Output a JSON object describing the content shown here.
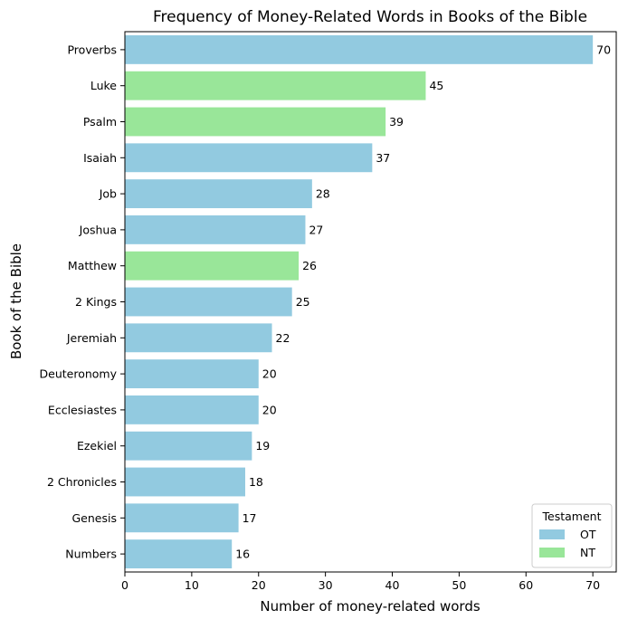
{
  "chart_data": {
    "type": "bar",
    "orientation": "horizontal",
    "title": "Frequency of Money-Related Words in Books of the Bible",
    "xlabel": "Number of money-related words",
    "ylabel": "Book of the Bible",
    "xlim": [
      0,
      73.5
    ],
    "xticks": [
      0,
      10,
      20,
      30,
      40,
      50,
      60,
      70
    ],
    "grid": false,
    "legend": {
      "title": "Testament",
      "placement": "lower-right",
      "entries": [
        {
          "label": "OT",
          "color": "#92cae0"
        },
        {
          "label": "NT",
          "color": "#99e699"
        }
      ]
    },
    "categories": [
      "Proverbs",
      "Luke",
      "Psalm",
      "Isaiah",
      "Job",
      "Joshua",
      "Matthew",
      "2 Kings",
      "Jeremiah",
      "Deuteronomy",
      "Ecclesiastes",
      "Ezekiel",
      "2 Chronicles",
      "Genesis",
      "Numbers"
    ],
    "values": [
      70,
      45,
      39,
      37,
      28,
      27,
      26,
      25,
      22,
      20,
      20,
      19,
      18,
      17,
      16
    ],
    "testament": [
      "OT",
      "NT",
      "NT",
      "OT",
      "OT",
      "OT",
      "NT",
      "OT",
      "OT",
      "OT",
      "OT",
      "OT",
      "OT",
      "OT",
      "OT"
    ]
  }
}
